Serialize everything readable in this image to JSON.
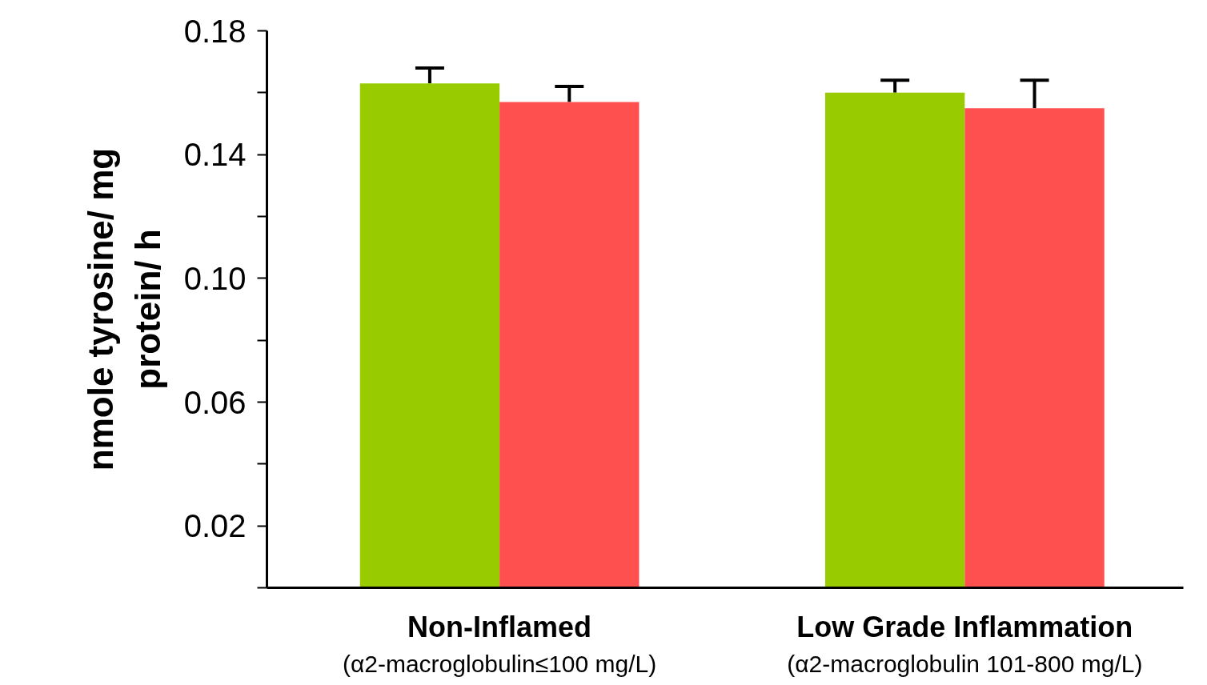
{
  "chart_data": {
    "type": "bar",
    "ylabel": "nmole tyrosine/ mg\nprotein/ h",
    "categories": [
      "Non-Inflamed\n(α2-macroglobulin≤100 mg/L)",
      "Low Grade Inflammation\n(α2-macroglobulin 101-800 mg/L)"
    ],
    "series": [
      {
        "color": "#99cc00",
        "values": [
          0.163,
          0.16
        ],
        "errors": [
          [
            0.163,
            0.168
          ],
          [
            0.16,
            0.164
          ]
        ]
      },
      {
        "color": "#ff5050",
        "values": [
          0.157,
          0.155
        ],
        "errors": [
          [
            0.157,
            0.162
          ],
          [
            0.155,
            0.164
          ]
        ]
      }
    ],
    "ylim": [
      0,
      0.18
    ],
    "yticks": [
      {
        "value": 0,
        "label": null
      },
      0.02,
      {
        "value": 0.04,
        "label": null
      },
      0.06,
      {
        "value": 0.08,
        "label": null
      },
      {
        "value": 0.1,
        "label": "0.10"
      },
      {
        "value": 0.12,
        "label": null
      },
      0.14,
      {
        "value": 0.16,
        "label": null
      },
      0.18
    ],
    "grid": false
  }
}
